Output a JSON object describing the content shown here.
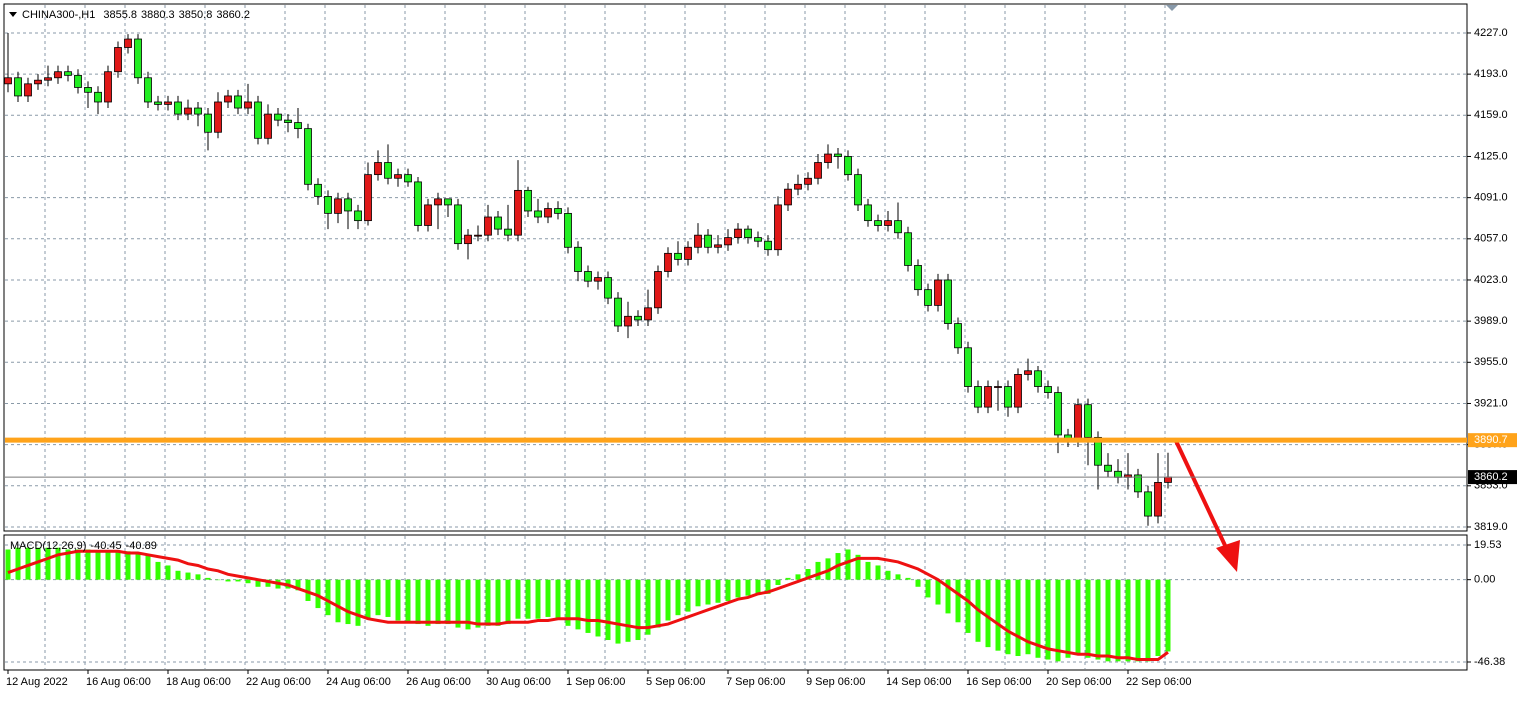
{
  "chart_data": [
    {
      "type": "candlestick",
      "title": "CHINA300-,H1",
      "header_values": [
        3855.8,
        3880.3,
        3850.8,
        3860.2
      ],
      "up_color": "#e01818",
      "down_color": "#22ee22",
      "categories": [
        "12 Aug 2022",
        null,
        null,
        null,
        null,
        null,
        null,
        null,
        "16 Aug 06:00",
        null,
        null,
        null,
        null,
        null,
        null,
        null,
        "18 Aug 06:00",
        null,
        null,
        null,
        null,
        null,
        null,
        null,
        "22 Aug 06:00",
        null,
        null,
        null,
        null,
        null,
        null,
        null,
        "24 Aug 06:00",
        null,
        null,
        null,
        null,
        null,
        null,
        null,
        "26 Aug 06:00",
        null,
        null,
        null,
        null,
        null,
        null,
        null,
        "30 Aug 06:00",
        null,
        null,
        null,
        null,
        null,
        null,
        null,
        "1 Sep 06:00",
        null,
        null,
        null,
        null,
        null,
        null,
        null,
        "5 Sep 06:00",
        null,
        null,
        null,
        null,
        null,
        null,
        null,
        "7 Sep 06:00",
        null,
        null,
        null,
        null,
        null,
        null,
        null,
        "9 Sep 06:00",
        null,
        null,
        null,
        null,
        null,
        null,
        null,
        "14 Sep 06:00",
        null,
        null,
        null,
        null,
        null,
        null,
        null,
        "16 Sep 06:00",
        null,
        null,
        null,
        null,
        null,
        null,
        null,
        "20 Sep 06:00",
        null,
        null,
        null,
        null,
        null,
        null,
        null,
        "22 Sep 06:00",
        null,
        null,
        null,
        null
      ],
      "open": [
        4185,
        4190,
        4175,
        4185,
        4188,
        4190,
        4195,
        4192,
        4182,
        4178,
        4170,
        4195,
        4215,
        4222,
        4190,
        4170,
        4168,
        4170,
        4160,
        4165,
        4160,
        4145,
        4170,
        4175,
        4165,
        4170,
        4140,
        4160,
        4155,
        4153,
        4148,
        4102,
        4092,
        4078,
        4090,
        4080,
        4072,
        4110,
        4120,
        4107,
        4110,
        4104,
        4068,
        4085,
        4090,
        4085,
        4053,
        4060,
        4060,
        4075,
        4065,
        4060,
        4097,
        4080,
        4075,
        4082,
        4078,
        4050,
        4030,
        4022,
        4025,
        4008,
        3985,
        3993,
        3990,
        4000,
        4030,
        4045,
        4040,
        4050,
        4060,
        4050,
        4052,
        4058,
        4065,
        4058,
        4055,
        4048,
        4085,
        4098,
        4102,
        4107,
        4120,
        4127,
        4125,
        4110,
        4085,
        4072,
        4068,
        4072,
        4062,
        4035,
        4015,
        4002,
        4023,
        3987,
        3967,
        3935,
        3918,
        3935,
        3935,
        3918,
        3945,
        3948,
        3935,
        3930,
        3895,
        3890,
        3920,
        3893,
        3870,
        3865,
        3860,
        3862,
        3848,
        3828,
        3855.8
      ],
      "high": [
        4227,
        4195,
        4190,
        4193,
        4200,
        4200,
        4200,
        4197,
        4187,
        4183,
        4200,
        4220,
        4226,
        4226,
        4195,
        4175,
        4175,
        4175,
        4172,
        4170,
        4165,
        4178,
        4180,
        4180,
        4185,
        4175,
        4168,
        4165,
        4160,
        4165,
        4152,
        4107,
        4097,
        4095,
        4095,
        4085,
        4120,
        4130,
        4135,
        4115,
        4115,
        4108,
        4090,
        4095,
        4090,
        4090,
        4065,
        4068,
        4085,
        4080,
        4085,
        4122,
        4100,
        4090,
        4087,
        4088,
        4083,
        4055,
        4035,
        4030,
        4030,
        4013,
        4005,
        3998,
        4015,
        4035,
        4050,
        4055,
        4055,
        4070,
        4065,
        4060,
        4065,
        4070,
        4068,
        4063,
        4060,
        4092,
        4103,
        4110,
        4112,
        4127,
        4135,
        4132,
        4130,
        4115,
        4090,
        4077,
        4080,
        4087,
        4067,
        4040,
        4020,
        4028,
        4028,
        3992,
        3972,
        3940,
        3940,
        3940,
        3940,
        3950,
        3958,
        3952,
        3940,
        3935,
        3900,
        3925,
        3925,
        3898,
        3880,
        3875,
        3880,
        3867,
        3853,
        3880,
        3880.3
      ],
      "low": [
        4178,
        4170,
        4170,
        4180,
        4183,
        4185,
        4187,
        4177,
        4165,
        4160,
        4165,
        4190,
        4210,
        4185,
        4165,
        4163,
        4163,
        4155,
        4155,
        4150,
        4130,
        4140,
        4165,
        4160,
        4160,
        4135,
        4135,
        4150,
        4145,
        4140,
        4097,
        4085,
        4065,
        4070,
        4065,
        4065,
        4068,
        4105,
        4102,
        4100,
        4100,
        4063,
        4063,
        4065,
        4075,
        4048,
        4040,
        4055,
        4055,
        4060,
        4055,
        4055,
        4075,
        4070,
        4070,
        4073,
        4045,
        4022,
        4017,
        4015,
        4003,
        3980,
        3975,
        3985,
        3985,
        3995,
        4025,
        4035,
        4035,
        4045,
        4045,
        4045,
        4047,
        4053,
        4053,
        4050,
        4043,
        4043,
        4080,
        4093,
        4097,
        4102,
        4115,
        4115,
        4105,
        4080,
        4067,
        4063,
        4063,
        4057,
        4030,
        4010,
        3997,
        3997,
        3982,
        3962,
        3930,
        3913,
        3913,
        3915,
        3910,
        3913,
        3940,
        3930,
        3925,
        3880,
        3885,
        3885,
        3870,
        3850,
        3860,
        3855,
        3850,
        3843,
        3820,
        3822,
        3850.8
      ],
      "close": [
        4190,
        4175,
        4185,
        4188,
        4190,
        4195,
        4192,
        4182,
        4178,
        4170,
        4195,
        4215,
        4222,
        4190,
        4170,
        4168,
        4170,
        4160,
        4165,
        4160,
        4145,
        4170,
        4175,
        4165,
        4170,
        4140,
        4160,
        4155,
        4153,
        4148,
        4102,
        4092,
        4078,
        4090,
        4080,
        4072,
        4110,
        4120,
        4107,
        4110,
        4104,
        4068,
        4085,
        4090,
        4085,
        4053,
        4060,
        4060,
        4075,
        4065,
        4060,
        4097,
        4080,
        4075,
        4082,
        4078,
        4050,
        4030,
        4022,
        4025,
        4008,
        3985,
        3993,
        3990,
        4000,
        4030,
        4045,
        4040,
        4050,
        4060,
        4050,
        4052,
        4058,
        4065,
        4058,
        4055,
        4048,
        4085,
        4098,
        4102,
        4107,
        4120,
        4127,
        4125,
        4110,
        4085,
        4072,
        4068,
        4072,
        4062,
        4035,
        4015,
        4002,
        4023,
        3987,
        3967,
        3935,
        3918,
        3935,
        3935,
        3918,
        3945,
        3948,
        3935,
        3930,
        3895,
        3890,
        3920,
        3893,
        3870,
        3865,
        3860,
        3862,
        3848,
        3828,
        3855.8,
        3860.2
      ],
      "ylim": [
        3816.5,
        4250.1
      ],
      "yticks": [
        {
          "value": 4227,
          "label": "4227.0"
        },
        {
          "value": 4193,
          "label": "4193.0"
        },
        {
          "value": 4159,
          "label": "4159.0"
        },
        {
          "value": 4125,
          "label": "4125.0"
        },
        {
          "value": 4091,
          "label": "4091.0"
        },
        {
          "value": 4057,
          "label": "4057.0"
        },
        {
          "value": 4023,
          "label": "4023.0"
        },
        {
          "value": 3989,
          "label": "3989.0"
        },
        {
          "value": 3955,
          "label": "3955.0"
        },
        {
          "value": 3921,
          "label": "3921.0"
        },
        {
          "value": 3887,
          "label": "3887.0"
        },
        {
          "value": 3853,
          "label": "3853.0"
        },
        {
          "value": 3819,
          "label": "3819.0"
        }
      ],
      "grid": true,
      "hline": {
        "value": 3890.7,
        "color": "#ffa31a"
      },
      "last_price": 3860.2
    },
    {
      "type": "macd",
      "title": "MACD(12,26,9)",
      "header_values": [
        -40.45,
        -40.89
      ],
      "histogram": {
        "color": "#33ff00",
        "values": [
          17,
          18,
          18,
          18,
          18,
          18,
          17,
          17,
          17,
          16,
          16,
          16,
          16,
          15,
          14,
          10,
          8,
          5,
          4,
          3,
          1,
          0,
          -1,
          -1,
          -2,
          -4,
          -4,
          -5,
          -5,
          -6,
          -12,
          -16,
          -20,
          -24,
          -25,
          -26,
          -22,
          -20,
          -21,
          -23,
          -24,
          -25,
          -26,
          -25,
          -25,
          -27,
          -28,
          -27,
          -26,
          -26,
          -25,
          -22,
          -22,
          -22,
          -21,
          -22,
          -26,
          -28,
          -30,
          -32,
          -34,
          -36,
          -35,
          -34,
          -31,
          -27,
          -23,
          -20,
          -18,
          -15,
          -14,
          -13,
          -12,
          -10,
          -9,
          -8,
          -8,
          -3,
          1,
          3,
          6,
          10,
          12,
          15,
          17,
          14,
          10,
          8,
          5,
          3,
          1,
          -4,
          -10,
          -14,
          -19,
          -24,
          -30,
          -35,
          -38,
          -40,
          -42,
          -43,
          -42,
          -44,
          -45,
          -46,
          -44,
          -42,
          -44,
          -45,
          -46,
          -46,
          -46,
          -46,
          -46,
          -43,
          -40.45
        ]
      },
      "signal": {
        "color": "#ee1111",
        "values": [
          4,
          6,
          8,
          10,
          12,
          14,
          15,
          16,
          16,
          16,
          16,
          16,
          15,
          15,
          14,
          13,
          12,
          11,
          9,
          8,
          6,
          5,
          3,
          2,
          1,
          0,
          -1,
          -2,
          -3,
          -5,
          -7,
          -9,
          -12,
          -15,
          -18,
          -20,
          -22,
          -23,
          -24,
          -24,
          -24,
          -24,
          -24,
          -24,
          -24,
          -24,
          -24,
          -25,
          -25,
          -25,
          -24,
          -24,
          -24,
          -23,
          -23,
          -22,
          -22,
          -22,
          -23,
          -23,
          -24,
          -25,
          -26,
          -27,
          -27,
          -26,
          -25,
          -23,
          -21,
          -19,
          -17,
          -15,
          -13,
          -11,
          -10,
          -8,
          -7,
          -5,
          -3,
          -1,
          1,
          3,
          5,
          8,
          10,
          12,
          12,
          12,
          11,
          10,
          8,
          6,
          3,
          0,
          -4,
          -8,
          -12,
          -17,
          -21,
          -25,
          -29,
          -32,
          -35,
          -37,
          -39,
          -40,
          -41,
          -42,
          -42,
          -43,
          -43,
          -44,
          -44,
          -45,
          -45,
          -45,
          -40.89
        ]
      },
      "ylim": [
        -46.38,
        19.53
      ],
      "yticks": [
        19.53,
        {
          "value": 0,
          "label": "0.00"
        },
        -46.38
      ]
    }
  ]
}
